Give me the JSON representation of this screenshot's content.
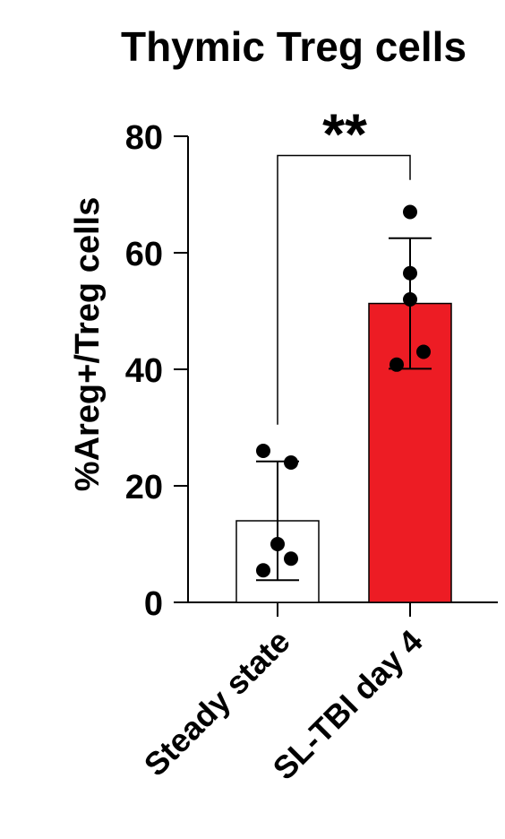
{
  "chart_data": {
    "type": "bar",
    "title": "Thymic Treg cells",
    "ylabel": "%Areg+/Treg cells",
    "xlabel": "",
    "ylim": [
      0,
      80
    ],
    "yticks": [
      0,
      20,
      40,
      60,
      80
    ],
    "grid": false,
    "categories": [
      "Steady state",
      "SL-TBI day 4"
    ],
    "bars": [
      {
        "category": "Steady state",
        "mean": 14,
        "error": 10.2,
        "fill": "#ffffff",
        "points": [
          26,
          24,
          10,
          7.5,
          5.5
        ]
      },
      {
        "category": "SL-TBI day 4",
        "mean": 51.3,
        "error": 11.2,
        "fill": "#ed1c24",
        "points": [
          67,
          56.5,
          52,
          43,
          40.8
        ]
      }
    ],
    "annotation": {
      "text": "**",
      "between": [
        "Steady state",
        "SL-TBI day 4"
      ]
    }
  }
}
